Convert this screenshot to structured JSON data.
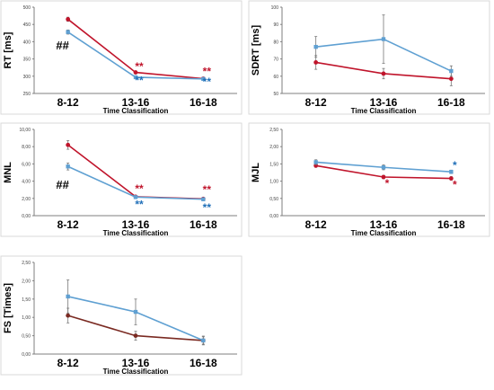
{
  "colors": {
    "red": "#c0142b",
    "blue": "#5fa0d2",
    "brown": "#7a2a22",
    "darkblue": "#1f6fb8",
    "black": "#000000"
  },
  "chart_data": [
    {
      "id": "rt",
      "type": "line",
      "categories": [
        "8-12",
        "13-16",
        "16-18"
      ],
      "xlabel": "Time Classification",
      "ylabel": "RT [ms]",
      "ylim": [
        250,
        500
      ],
      "yticks": [
        "250",
        "300",
        "350",
        "400",
        "450",
        "500"
      ],
      "series": [
        {
          "color": "red",
          "values": [
            465,
            311,
            293
          ],
          "err": [
            6,
            4,
            3
          ]
        },
        {
          "color": "blue",
          "values": [
            428,
            297,
            292
          ],
          "err": [
            6,
            3,
            3
          ]
        }
      ],
      "annotations": [
        {
          "text": "##",
          "category": 0,
          "y": 378,
          "color": "black",
          "size": 13
        },
        {
          "text": "**",
          "category": 1,
          "y": 318,
          "color": "red",
          "size": 12
        },
        {
          "text": "**",
          "category": 1,
          "y": 277,
          "color": "darkblue",
          "size": 12
        },
        {
          "text": "**",
          "category": 2,
          "y": 303,
          "color": "red",
          "size": 12
        },
        {
          "text": "**",
          "category": 2,
          "y": 273,
          "color": "darkblue",
          "size": 12
        }
      ]
    },
    {
      "id": "sdrt",
      "type": "line",
      "categories": [
        "8-12",
        "13-16",
        "16-18"
      ],
      "xlabel": "Time Classification",
      "ylabel": "SDRT [ms]",
      "ylim": [
        50,
        100
      ],
      "yticks": [
        "50",
        "60",
        "70",
        "80",
        "90",
        "100"
      ],
      "series": [
        {
          "color": "red",
          "values": [
            68,
            61.5,
            58.5
          ],
          "err": [
            4,
            3,
            4
          ]
        },
        {
          "color": "blue",
          "values": [
            77,
            81.5,
            63
          ],
          "err": [
            6,
            14,
            3
          ]
        }
      ],
      "annotations": []
    },
    {
      "id": "mnl",
      "type": "line",
      "categories": [
        "8-12",
        "13-16",
        "16-18"
      ],
      "xlabel": "Time Classification",
      "ylabel": "MNL",
      "ylim": [
        0,
        10
      ],
      "yticks": [
        "0,00",
        "2,00",
        "4,00",
        "6,00",
        "8,00",
        "10,00"
      ],
      "series": [
        {
          "color": "red",
          "values": [
            8.2,
            2.2,
            1.95
          ],
          "err": [
            0.5,
            0.15,
            0.15
          ]
        },
        {
          "color": "blue",
          "values": [
            5.7,
            2.15,
            1.9
          ],
          "err": [
            0.4,
            0.15,
            0.15
          ]
        }
      ],
      "annotations": [
        {
          "text": "##",
          "category": 0,
          "y": 3.1,
          "color": "black",
          "size": 13
        },
        {
          "text": "**",
          "category": 1,
          "y": 2.7,
          "color": "red",
          "size": 12
        },
        {
          "text": "**",
          "category": 1,
          "y": 0.9,
          "color": "darkblue",
          "size": 12
        },
        {
          "text": "**",
          "category": 2,
          "y": 2.6,
          "color": "red",
          "size": 12
        },
        {
          "text": "**",
          "category": 2,
          "y": 0.5,
          "color": "darkblue",
          "size": 12
        }
      ]
    },
    {
      "id": "mjl",
      "type": "line",
      "categories": [
        "8-12",
        "13-16",
        "16-18"
      ],
      "xlabel": "Time Classification",
      "ylabel": "MJL",
      "ylim": [
        0,
        2.5
      ],
      "yticks": [
        "0,00",
        "0,50",
        "1,00",
        "1,50",
        "2,00",
        "2,50"
      ],
      "series": [
        {
          "color": "red",
          "values": [
            1.45,
            1.12,
            1.08
          ],
          "err": [
            0.05,
            0.05,
            0.05
          ]
        },
        {
          "color": "blue",
          "values": [
            1.55,
            1.4,
            1.27
          ],
          "err": [
            0.07,
            0.07,
            0.05
          ]
        }
      ],
      "annotations": [
        {
          "text": "*",
          "category": 1,
          "y": 0.83,
          "color": "red",
          "size": 12
        },
        {
          "text": "*",
          "category": 2,
          "y": 1.35,
          "color": "darkblue",
          "size": 12
        },
        {
          "text": "*",
          "category": 2,
          "y": 0.8,
          "color": "red",
          "size": 12
        }
      ]
    },
    {
      "id": "fs",
      "type": "line",
      "categories": [
        "8-12",
        "13-16",
        "16-18"
      ],
      "xlabel": "Time Classification",
      "ylabel": "FS [Times]",
      "ylim": [
        0,
        2.5
      ],
      "yticks": [
        "0,00",
        "0,50",
        "1,00",
        "1,50",
        "2,00",
        "2,50"
      ],
      "series": [
        {
          "color": "brown",
          "values": [
            1.05,
            0.5,
            0.37
          ],
          "err": [
            0.2,
            0.12,
            0.1
          ]
        },
        {
          "color": "blue",
          "values": [
            1.57,
            1.15,
            0.37
          ],
          "err": [
            0.45,
            0.35,
            0.12
          ]
        }
      ],
      "annotations": []
    }
  ]
}
